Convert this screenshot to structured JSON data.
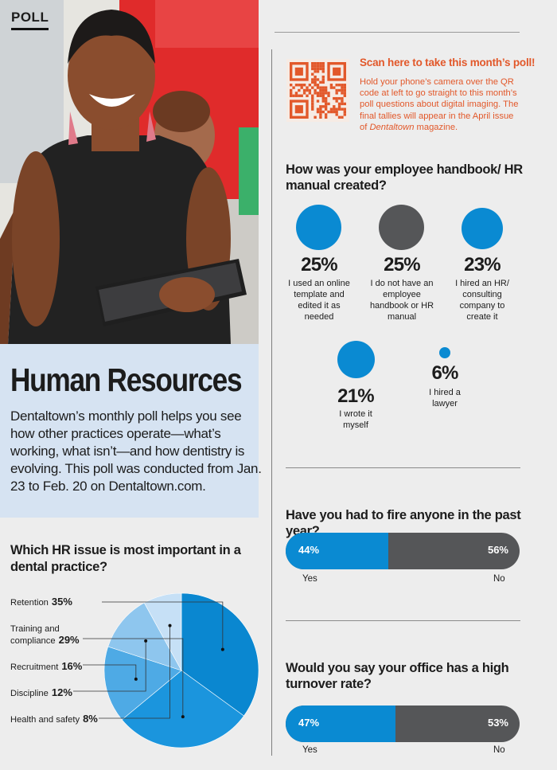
{
  "header": {
    "tag": "POLL"
  },
  "intro": {
    "title": "Human Resources",
    "text": "Dentaltown’s monthly poll helps you see how other practices operate—what’s working, what isn’t—and how dentistry is evolving. This poll was conducted from Jan. 23 to Feb. 20 on Dentaltown.com."
  },
  "qr": {
    "heading": "Scan here to take this month’s poll!",
    "text_before": "Hold your phone’s camera over the QR code at left to go straight to this month’s poll questions about digital imaging. The final tallies will appear in the April issue of ",
    "text_italic": "Dentaltown",
    "text_after": " magazine."
  },
  "colors": {
    "blue": "#0a8ad2",
    "dark": "#555658",
    "orange": "#e2582a",
    "intro_bg": "#d6e3f2"
  },
  "handbook": {
    "question": "How was your employee handbook/ HR manual created?",
    "options": [
      {
        "pct": "25%",
        "value": 25,
        "label": "I used an online template and edited it as needed",
        "color": "#0a8ad2"
      },
      {
        "pct": "25%",
        "value": 25,
        "label": "I do not have an employee handbook or HR manual",
        "color": "#555658"
      },
      {
        "pct": "23%",
        "value": 23,
        "label": "I hired an HR/ consulting company to create it",
        "color": "#0a8ad2"
      },
      {
        "pct": "21%",
        "value": 21,
        "label": "I wrote it myself",
        "color": "#0a8ad2"
      },
      {
        "pct": "6%",
        "value": 6,
        "label": "I hired a lawyer",
        "color": "#0a8ad2"
      }
    ]
  },
  "fire": {
    "question": "Have you had to fire anyone in the past year?",
    "yes_pct": "44%",
    "no_pct": "56%",
    "yes_value": 44,
    "yes_label": "Yes",
    "no_label": "No"
  },
  "turnover": {
    "question": "Would you say your office has a high turnover rate?",
    "yes_pct": "47%",
    "no_pct": "53%",
    "yes_value": 47,
    "yes_label": "Yes",
    "no_label": "No"
  },
  "chart_data": {
    "type": "pie",
    "title": "Which HR issue is most important in a dental practice?",
    "categories": [
      "Retention",
      "Training and compliance",
      "Recruitment",
      "Discipline",
      "Health and safety"
    ],
    "values": [
      35,
      29,
      16,
      12,
      8
    ],
    "pct_labels": [
      "35%",
      "29%",
      "16%",
      "12%",
      "8%"
    ],
    "colors": [
      "#0a87d0",
      "#1b95dd",
      "#4eaae5",
      "#8ec6ee",
      "#c6e0f6"
    ]
  }
}
